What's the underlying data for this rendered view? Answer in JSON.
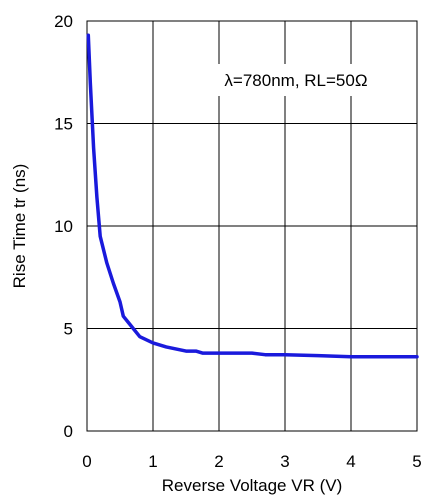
{
  "chart_data": {
    "type": "line",
    "xlabel": "Reverse Voltage VR (V)",
    "ylabel": "Rise Time tr (ns)",
    "xlim": [
      0,
      5
    ],
    "ylim": [
      0,
      20
    ],
    "x_ticks": [
      0,
      1,
      2,
      3,
      4,
      5
    ],
    "y_ticks": [
      0,
      5,
      10,
      15,
      20
    ],
    "x_tick_labels": [
      "0",
      "1",
      "2",
      "3",
      "4",
      "5"
    ],
    "y_tick_labels": [
      "0",
      "5",
      "10",
      "15",
      "20"
    ],
    "grid": true,
    "annotation": "λ=780nm, RL=50Ω",
    "series": [
      {
        "color": "#1a1adc",
        "x": [
          0.02,
          0.05,
          0.1,
          0.15,
          0.2,
          0.3,
          0.4,
          0.5,
          0.55,
          0.65,
          0.8,
          1.0,
          1.2,
          1.5,
          1.65,
          1.75,
          2.0,
          2.5,
          2.7,
          3.0,
          3.5,
          4.0,
          4.5,
          5.0
        ],
        "y": [
          19.3,
          17.0,
          13.8,
          11.4,
          9.5,
          8.2,
          7.2,
          6.3,
          5.6,
          5.2,
          4.6,
          4.3,
          4.1,
          3.9,
          3.9,
          3.8,
          3.8,
          3.8,
          3.72,
          3.72,
          3.68,
          3.62,
          3.62,
          3.62
        ]
      }
    ]
  }
}
